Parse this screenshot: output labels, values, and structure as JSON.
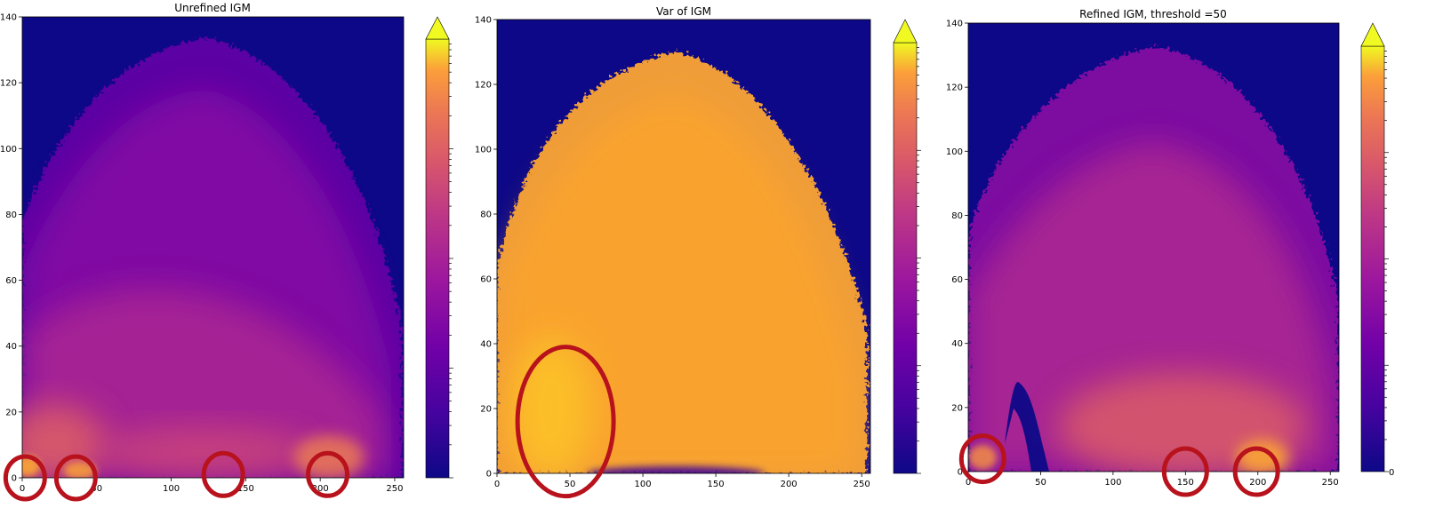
{
  "chart_data": [
    {
      "type": "heatmap",
      "title": "Unrefined IGM",
      "xlabel": "",
      "ylabel": "",
      "xlim": [
        0,
        256
      ],
      "ylim": [
        0,
        140
      ],
      "xticks": [
        0,
        50,
        100,
        150,
        200,
        250
      ],
      "yticks": [
        0,
        20,
        40,
        60,
        80,
        100,
        120,
        140
      ],
      "xtick_labels": [
        "0",
        "50",
        "100",
        "150",
        "200",
        "250"
      ],
      "ytick_labels": [
        "0",
        "20",
        "40",
        "60",
        "80",
        "100",
        "120",
        "140"
      ],
      "colormap": "plasma",
      "background_color": "#0d0887",
      "colorbar": {
        "extend": "max",
        "scale": "log",
        "labels_visible": false
      },
      "description": "Dome-shaped intensity distribution, highest near bottom edge (y<20), peaking around x 0-40, 130 and 200; edges reach about y 130 at x 120.",
      "highlight_circles": [
        {
          "x": 2,
          "y": 0
        },
        {
          "x": 36,
          "y": 0
        },
        {
          "x": 135,
          "y": 1
        },
        {
          "x": 205,
          "y": 1
        }
      ]
    },
    {
      "type": "heatmap",
      "title": "Var of IGM",
      "xlabel": "",
      "ylabel": "",
      "xlim": [
        0,
        256
      ],
      "ylim": [
        0,
        140
      ],
      "xticks": [
        0,
        50,
        100,
        150,
        200,
        250
      ],
      "yticks": [
        0,
        20,
        40,
        60,
        80,
        100,
        120,
        140
      ],
      "xtick_labels": [
        "0",
        "50",
        "100",
        "150",
        "200",
        "250"
      ],
      "ytick_labels": [
        "0",
        "20",
        "40",
        "60",
        "80",
        "100",
        "120",
        "140"
      ],
      "colormap": "plasma",
      "background_color": "#0d0887",
      "colorbar": {
        "extend": "max",
        "scale": "log",
        "labels_visible": false
      },
      "description": "Saturated yellow-orange dome covering the same region; isolated dark pixels near the noisy border and along y≈1.",
      "highlight_circles": [
        {
          "x": 47,
          "y": 16
        }
      ]
    },
    {
      "type": "heatmap",
      "title": "Refined IGM, threshold =50",
      "xlabel": "",
      "ylabel": "",
      "xlim": [
        0,
        256
      ],
      "ylim": [
        0,
        140
      ],
      "xticks": [
        0,
        50,
        100,
        150,
        200,
        250
      ],
      "yticks": [
        0,
        20,
        40,
        60,
        80,
        100,
        120,
        140
      ],
      "xtick_labels": [
        "0",
        "50",
        "100",
        "150",
        "200",
        "250"
      ],
      "ytick_labels": [
        "0",
        "20",
        "40",
        "60",
        "80",
        "100",
        "120",
        "140"
      ],
      "colormap": "plasma",
      "background_color": "#0d0887",
      "colorbar": {
        "extend": "max",
        "scale": "log",
        "labels_visible": false,
        "clipped_label": "0"
      },
      "description": "Same dome as unrefined, with low-intensity pixels removed (dark speckles), a removed arc near x 20-50, y 0-35, bright spots near x 150 and 200.",
      "highlight_circles": [
        {
          "x": 10,
          "y": 4
        },
        {
          "x": 150,
          "y": 0
        },
        {
          "x": 199,
          "y": 0
        }
      ]
    }
  ]
}
